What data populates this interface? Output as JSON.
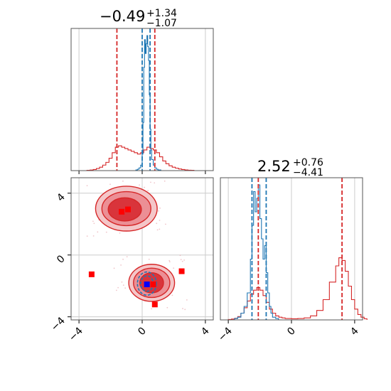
{
  "chart_data": {
    "type": "corner",
    "title_1": {
      "value": "−0.49",
      "plus": "+1.34",
      "minus": "−1.07"
    },
    "title_2": {
      "value": "2.52",
      "plus": "+0.76",
      "minus": "−4.41"
    },
    "xlim": [
      -4.5,
      4.5
    ],
    "ylim": [
      -4.2,
      5.0
    ],
    "ticks": [
      -4,
      0,
      4
    ],
    "tick_labels": [
      "−4",
      "0",
      "4"
    ],
    "grid": true,
    "colors": {
      "red": "#d62728",
      "blue": "#1f77b4",
      "marker_red": "#ff0000",
      "marker_blue": "#0000ff"
    },
    "red_quantile_lines_x": [
      -1.6,
      0.8
    ],
    "blue_quantile_lines_x": [
      0.0,
      0.5
    ],
    "red_quantile_lines_y": [
      -2.1,
      3.2
    ],
    "blue_quantile_lines_y": [
      -2.5,
      -1.6
    ],
    "red_hist_x": [
      [
        -3.5,
        0.002
      ],
      [
        -3.3,
        0.004
      ],
      [
        -3.1,
        0.008
      ],
      [
        -2.9,
        0.015
      ],
      [
        -2.7,
        0.025
      ],
      [
        -2.5,
        0.04
      ],
      [
        -2.3,
        0.06
      ],
      [
        -2.1,
        0.09
      ],
      [
        -1.9,
        0.13
      ],
      [
        -1.7,
        0.17
      ],
      [
        -1.5,
        0.18
      ],
      [
        -1.3,
        0.17
      ],
      [
        -1.1,
        0.16
      ],
      [
        -0.9,
        0.15
      ],
      [
        -0.7,
        0.14
      ],
      [
        -0.5,
        0.13
      ],
      [
        -0.3,
        0.12
      ],
      [
        -0.1,
        0.13
      ],
      [
        0.1,
        0.15
      ],
      [
        0.3,
        0.17
      ],
      [
        0.5,
        0.16
      ],
      [
        0.7,
        0.15
      ],
      [
        0.9,
        0.13
      ],
      [
        1.1,
        0.1
      ],
      [
        1.3,
        0.07
      ],
      [
        1.5,
        0.05
      ],
      [
        1.7,
        0.035
      ],
      [
        1.9,
        0.025
      ],
      [
        2.1,
        0.018
      ],
      [
        2.3,
        0.012
      ],
      [
        2.5,
        0.008
      ],
      [
        2.7,
        0.005
      ],
      [
        2.9,
        0.003
      ],
      [
        3.1,
        0.002
      ]
    ],
    "blue_hist_x": [
      [
        -0.4,
        0.005
      ],
      [
        -0.3,
        0.01
      ],
      [
        -0.2,
        0.02
      ],
      [
        -0.1,
        0.04
      ],
      [
        0.0,
        0.12
      ],
      [
        0.05,
        0.35
      ],
      [
        0.1,
        0.75
      ],
      [
        0.15,
        0.95
      ],
      [
        0.2,
        0.85
      ],
      [
        0.25,
        0.92
      ],
      [
        0.3,
        0.98
      ],
      [
        0.35,
        0.9
      ],
      [
        0.4,
        0.8
      ],
      [
        0.45,
        0.55
      ],
      [
        0.5,
        0.3
      ],
      [
        0.55,
        0.15
      ],
      [
        0.6,
        0.08
      ],
      [
        0.7,
        0.04
      ],
      [
        0.8,
        0.02
      ],
      [
        0.9,
        0.01
      ],
      [
        1.0,
        0.005
      ]
    ],
    "red_hist_y": [
      [
        -4.0,
        0.003
      ],
      [
        -3.8,
        0.006
      ],
      [
        -3.6,
        0.012
      ],
      [
        -3.4,
        0.025
      ],
      [
        -3.2,
        0.05
      ],
      [
        -3.0,
        0.09
      ],
      [
        -2.8,
        0.14
      ],
      [
        -2.6,
        0.19
      ],
      [
        -2.4,
        0.22
      ],
      [
        -2.2,
        0.24
      ],
      [
        -2.0,
        0.22
      ],
      [
        -1.8,
        0.18
      ],
      [
        -1.6,
        0.13
      ],
      [
        -1.4,
        0.08
      ],
      [
        -1.2,
        0.05
      ],
      [
        -1.0,
        0.03
      ],
      [
        -0.8,
        0.02
      ],
      [
        -0.6,
        0.015
      ],
      [
        -0.4,
        0.01
      ],
      [
        0.0,
        0.008
      ],
      [
        0.4,
        0.01
      ],
      [
        0.8,
        0.015
      ],
      [
        1.2,
        0.03
      ],
      [
        1.6,
        0.07
      ],
      [
        2.0,
        0.15
      ],
      [
        2.4,
        0.28
      ],
      [
        2.8,
        0.4
      ],
      [
        3.0,
        0.46
      ],
      [
        3.2,
        0.44
      ],
      [
        3.4,
        0.36
      ],
      [
        3.6,
        0.25
      ],
      [
        3.8,
        0.15
      ],
      [
        4.0,
        0.08
      ],
      [
        4.2,
        0.04
      ],
      [
        4.4,
        0.02
      ],
      [
        4.6,
        0.008
      ]
    ],
    "blue_hist_y": [
      [
        -3.6,
        0.01
      ],
      [
        -3.4,
        0.02
      ],
      [
        -3.2,
        0.05
      ],
      [
        -3.0,
        0.1
      ],
      [
        -2.8,
        0.2
      ],
      [
        -2.6,
        0.45
      ],
      [
        -2.5,
        0.7
      ],
      [
        -2.4,
        0.95
      ],
      [
        -2.3,
        0.8
      ],
      [
        -2.2,
        0.9
      ],
      [
        -2.1,
        1.0
      ],
      [
        -2.0,
        0.75
      ],
      [
        -1.9,
        0.6
      ],
      [
        -1.8,
        0.45
      ],
      [
        -1.7,
        0.55
      ],
      [
        -1.6,
        0.35
      ],
      [
        -1.5,
        0.2
      ],
      [
        -1.4,
        0.1
      ],
      [
        -1.3,
        0.05
      ],
      [
        -1.2,
        0.02
      ],
      [
        -1.0,
        0.01
      ]
    ],
    "red_contours": [
      {
        "cx": -1.0,
        "cy": 3.0,
        "rx": 1.95,
        "ry": 1.45,
        "level": 1
      },
      {
        "cx": -1.0,
        "cy": 3.0,
        "rx": 1.55,
        "ry": 1.1,
        "level": 2
      },
      {
        "cx": -1.1,
        "cy": 2.95,
        "rx": 1.05,
        "ry": 0.75,
        "level": 3
      },
      {
        "cx": 0.6,
        "cy": -1.8,
        "rx": 1.45,
        "ry": 1.2,
        "level": 1
      },
      {
        "cx": 0.6,
        "cy": -1.8,
        "rx": 1.15,
        "ry": 0.95,
        "level": 2
      },
      {
        "cx": 0.6,
        "cy": -1.8,
        "rx": 0.75,
        "ry": 0.65,
        "level": 3
      }
    ],
    "blue_contours": [
      {
        "cx": 0.3,
        "cy": -1.85,
        "rx": 0.6,
        "ry": 0.75
      },
      {
        "cx": 0.3,
        "cy": -1.85,
        "rx": 0.4,
        "ry": 0.5
      }
    ],
    "red_markers": [
      [
        -1.3,
        2.8
      ],
      [
        -0.9,
        2.95
      ],
      [
        -3.2,
        -1.25
      ],
      [
        2.5,
        -1.05
      ],
      [
        0.8,
        -3.2
      ],
      [
        0.7,
        -1.9
      ]
    ],
    "blue_markers": [
      [
        0.3,
        -1.9
      ]
    ]
  }
}
